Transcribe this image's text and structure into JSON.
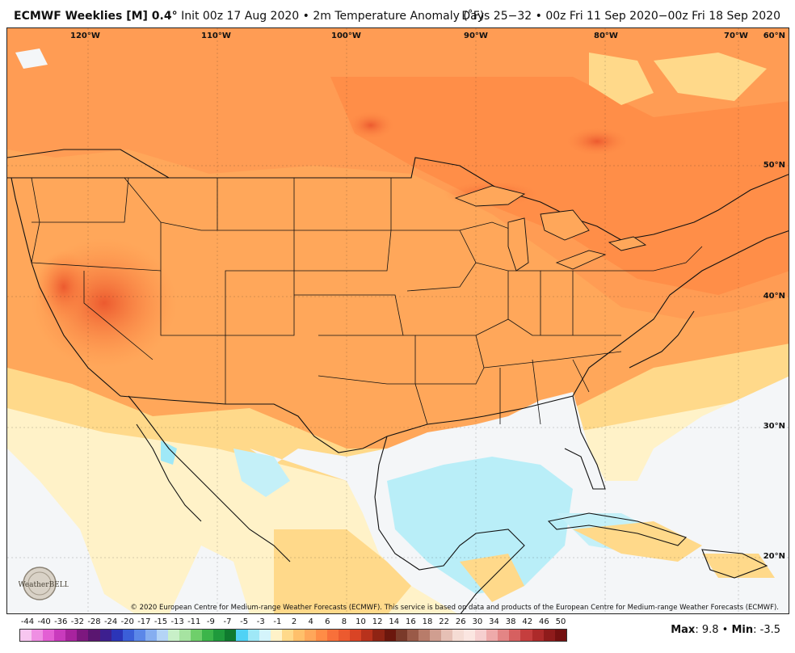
{
  "header": {
    "product": "ECMWF Weeklies [M] 0.4",
    "degree": "°",
    "description": "Init 00z 17 Aug 2020 • 2m Temperature Anomaly (˚F)",
    "valid": "Days 25−32 • 00z Fri 11 Sep 2020−00z Fri 18 Sep 2020"
  },
  "map": {
    "longitude_labels": [
      "120°W",
      "110°W",
      "100°W",
      "90°W",
      "80°W",
      "70°W"
    ],
    "latitude_labels": [
      "60°N",
      "50°N",
      "40°N",
      "30°N",
      "20°N"
    ],
    "copyright": "© 2020 European Centre for Medium-range Weather Forecasts (ECMWF). This service is based on data and products of the European Centre for Medium-range Weather Forecasts (ECMWF).",
    "logo_text": "WeatherBELL"
  },
  "legend": {
    "labels": [
      "-44",
      "-40",
      "-36",
      "-32",
      "-28",
      "-24",
      "-20",
      "-17",
      "-15",
      "-13",
      "-11",
      "-9",
      "-7",
      "-5",
      "-3",
      "-1",
      "2",
      "4",
      "6",
      "8",
      "10",
      "12",
      "14",
      "16",
      "18",
      "22",
      "26",
      "30",
      "34",
      "38",
      "42",
      "46",
      "50"
    ],
    "colors": [
      "#f7c6f0",
      "#ef8fe3",
      "#e35fd4",
      "#c93bbd",
      "#a8239e",
      "#7d187f",
      "#5a1670",
      "#3d1f8f",
      "#2b35b8",
      "#3b5fd8",
      "#5b87e8",
      "#86aef0",
      "#b4d4f6",
      "#c8f0c8",
      "#a6e3a1",
      "#6fcf6b",
      "#3cb54a",
      "#1f9a3c",
      "#0f7a2f",
      "#4fd2f5",
      "#9fe8f7",
      "#d4f4fb",
      "#fff2c8",
      "#ffd98a",
      "#ffc06b",
      "#ffa75a",
      "#ff8c46",
      "#f8703a",
      "#ec5a2f",
      "#d94425",
      "#b8321c",
      "#8f2414",
      "#6b170d",
      "#7a3a2a",
      "#9a5a48",
      "#b87c6a",
      "#d09e90",
      "#e6c0b5",
      "#f5dcd4",
      "#fbe6e1",
      "#f6cfcf",
      "#eeaaaa",
      "#e38585",
      "#d66060",
      "#c53e3e",
      "#ad2a2a",
      "#8f1b1b",
      "#741010"
    ],
    "max_label": "Max",
    "max_value": "9.8",
    "min_label": "Min",
    "min_value": "-3.5",
    "sep": " • "
  }
}
